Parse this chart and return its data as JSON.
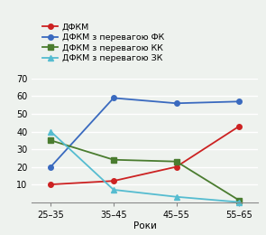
{
  "x_labels": [
    "25–35",
    "35–45",
    "45–55",
    "55–65"
  ],
  "x_values": [
    0,
    1,
    2,
    3
  ],
  "series": [
    {
      "label": "ДФКМ",
      "color": "#cc2222",
      "marker": "o",
      "values": [
        10,
        12,
        20,
        43
      ]
    },
    {
      "label": "ДФКМ з перевагою ФК",
      "color": "#3a6abf",
      "marker": "o",
      "values": [
        20,
        59,
        56,
        57
      ]
    },
    {
      "label": "ДФКМ з перевагою КК",
      "color": "#4a7c2f",
      "marker": "s",
      "values": [
        35,
        24,
        23,
        1
      ]
    },
    {
      "label": "ДФКМ з перевагою ЗК",
      "color": "#55bcd0",
      "marker": "^",
      "values": [
        40,
        7,
        3,
        0
      ]
    }
  ],
  "xlabel": "Роки",
  "ylim": [
    0,
    70
  ],
  "yticks": [
    0,
    10,
    20,
    30,
    40,
    50,
    60,
    70
  ],
  "background_color": "#eef2ee",
  "grid_color": "#ffffff",
  "legend_fontsize": 6.8,
  "axis_fontsize": 7.5,
  "tick_fontsize": 7
}
